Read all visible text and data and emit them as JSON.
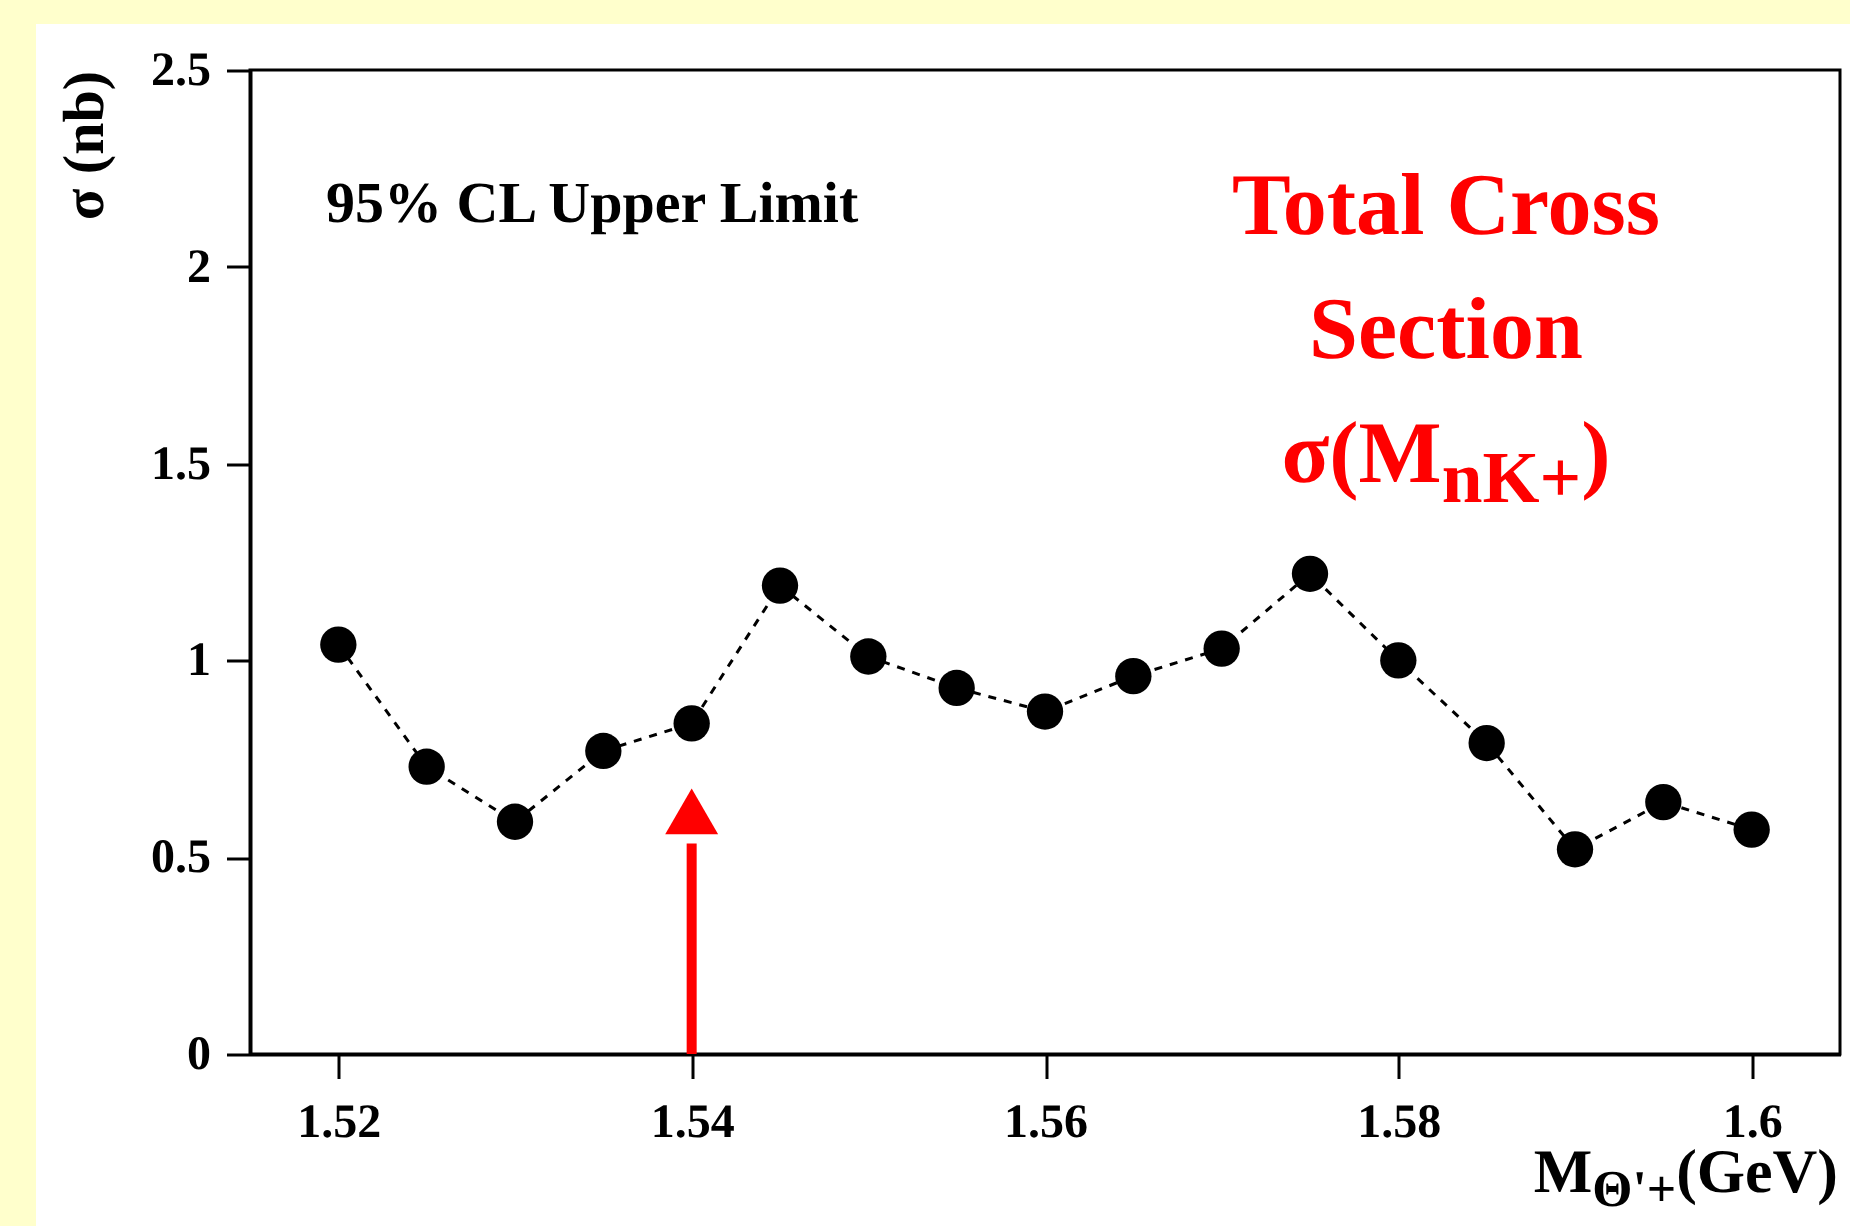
{
  "chart_data": {
    "type": "line",
    "xlabel": "M$_{Θ'+}$(GeV)",
    "ylabel": "σ (nb)",
    "annotations": [
      "95% CL Upper Limit",
      "Total Cross Section σ(M$_{nK+}$)"
    ],
    "x": [
      1.52,
      1.525,
      1.53,
      1.535,
      1.54,
      1.545,
      1.55,
      1.555,
      1.56,
      1.565,
      1.57,
      1.575,
      1.58,
      1.585,
      1.59,
      1.595,
      1.6
    ],
    "series": [
      {
        "color": "#000000",
        "values": [
          1.04,
          0.73,
          0.59,
          0.77,
          0.84,
          1.19,
          1.01,
          0.93,
          0.87,
          0.96,
          1.03,
          1.22,
          1.0,
          0.79,
          0.52,
          0.64,
          0.57
        ]
      }
    ],
    "xlim": [
      1.515,
      1.605
    ],
    "xticks": [
      1.52,
      1.54,
      1.56,
      1.58,
      1.6
    ],
    "ylim": [
      0,
      2.5
    ],
    "yticks": [
      0,
      0.5,
      1,
      1.5,
      2,
      2.5
    ],
    "ref_lines": [
      {
        "axis": "x",
        "value": 1.54,
        "color": "#ff0000"
      }
    ],
    "marker": "circle",
    "line_style": "dashed",
    "grid": false,
    "legend": false
  }
}
